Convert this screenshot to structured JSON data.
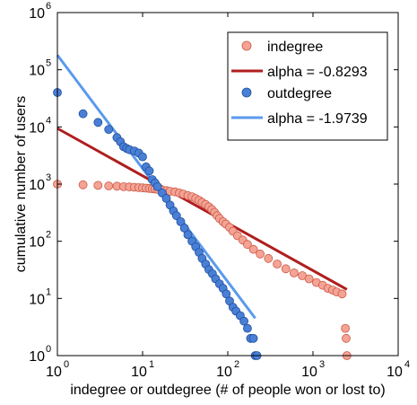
{
  "chart_data": {
    "type": "scatter",
    "xscale": "log",
    "yscale": "log",
    "xlim": [
      1,
      10000
    ],
    "ylim": [
      1,
      1000000
    ],
    "x_ticks": [
      1,
      10,
      100,
      1000,
      10000
    ],
    "y_ticks": [
      1,
      10,
      100,
      1000,
      10000,
      100000,
      1000000
    ],
    "tick_base": "10",
    "x_tick_exponents": [
      "0",
      "1",
      "2",
      "3",
      "4"
    ],
    "y_tick_exponents": [
      "0",
      "1",
      "2",
      "3",
      "4",
      "5",
      "6"
    ],
    "xlabel": "indegree or outdegree (# of people won or lost to)",
    "ylabel": "cumulative number of users",
    "grid": false,
    "legend_position": "top-right",
    "series": [
      {
        "name": "indegree",
        "kind": "markers",
        "color": "#f4a394",
        "edge": "#cc5a48",
        "x": [
          1,
          2,
          3,
          4,
          5,
          6,
          7,
          8,
          9,
          10,
          11,
          12,
          13,
          14,
          15,
          17,
          19,
          21,
          24,
          27,
          30,
          34,
          38,
          42,
          46,
          50,
          55,
          60,
          65,
          70,
          75,
          80,
          88,
          95,
          105,
          115,
          130,
          150,
          170,
          200,
          240,
          300,
          380,
          480,
          600,
          750,
          900,
          1100,
          1300,
          1500,
          1700,
          1900,
          2200,
          2400,
          2450,
          2500
        ],
        "y": [
          1000,
          970,
          950,
          930,
          920,
          900,
          890,
          880,
          870,
          860,
          850,
          840,
          830,
          820,
          810,
          790,
          770,
          750,
          730,
          700,
          670,
          630,
          600,
          560,
          520,
          480,
          440,
          400,
          360,
          320,
          280,
          250,
          220,
          200,
          175,
          150,
          125,
          105,
          88,
          72,
          60,
          50,
          40,
          33,
          28,
          25,
          22,
          19,
          17,
          15,
          14,
          13,
          12,
          3,
          2,
          1
        ]
      },
      {
        "name": "alpha = -0.8293",
        "kind": "line",
        "color": "#b01e1e",
        "x": [
          1,
          2500
        ],
        "y": [
          9400,
          14.4
        ]
      },
      {
        "name": "outdegree",
        "kind": "markers",
        "color": "#4a7fd6",
        "edge": "#1f4f9e",
        "x": [
          1,
          2,
          3,
          4,
          5,
          5.5,
          6,
          6.5,
          7,
          8,
          9,
          10,
          11,
          12,
          13,
          14,
          15,
          17,
          19,
          21,
          23,
          25,
          28,
          31,
          34,
          38,
          42,
          46,
          50,
          55,
          60,
          66,
          72,
          80,
          88,
          96,
          105,
          115,
          125,
          140,
          155,
          170,
          185,
          200,
          210,
          220
        ],
        "y": [
          40000,
          17000,
          12000,
          9000,
          6500,
          5500,
          4500,
          4200,
          4000,
          3800,
          3500,
          3000,
          2000,
          1700,
          1200,
          1050,
          900,
          700,
          560,
          430,
          340,
          280,
          220,
          170,
          130,
          100,
          80,
          64,
          50,
          40,
          32,
          27,
          22,
          18,
          15,
          12,
          9,
          7,
          6,
          5,
          4,
          3,
          2,
          2,
          1,
          1
        ]
      },
      {
        "name": "alpha = -1.9739",
        "kind": "line",
        "color": "#5b9aec",
        "x": [
          1,
          210
        ],
        "y": [
          180000,
          4.5
        ]
      }
    ]
  }
}
